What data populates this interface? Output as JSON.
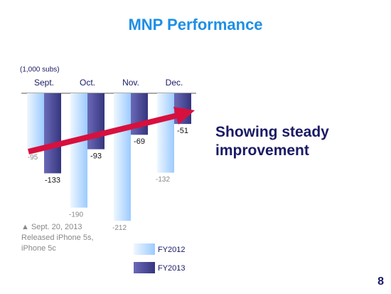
{
  "chart_data": {
    "type": "bar",
    "title": "MNP Performance",
    "unit_label": "(1,000 subs)",
    "categories": [
      "Sept.",
      "Oct.",
      "Nov.",
      "Dec."
    ],
    "series": [
      {
        "name": "FY2012",
        "color": "#9ccbff",
        "values": [
          -95,
          -190,
          -212,
          -132
        ]
      },
      {
        "name": "FY2013",
        "color": "#35357f",
        "values": [
          -133,
          -93,
          -69,
          -51
        ]
      }
    ],
    "ylim": [
      -220,
      0
    ],
    "annotation": "Showing steady improvement",
    "note": [
      "▲ Sept. 20, 2013",
      "Released iPhone 5s,",
      "iPhone 5c"
    ],
    "page_number": "8"
  }
}
